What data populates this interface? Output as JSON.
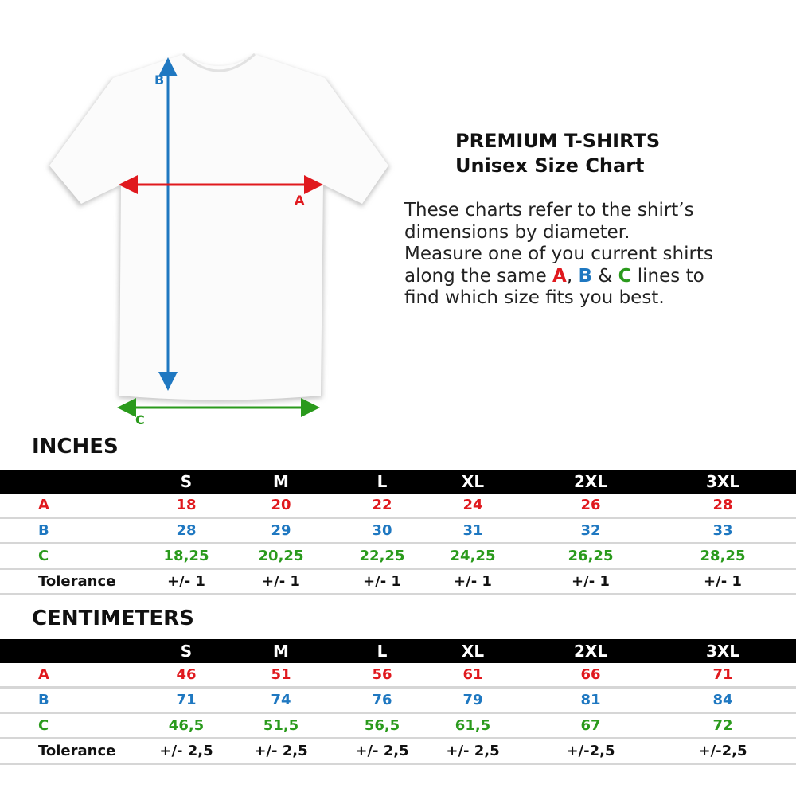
{
  "title": {
    "line1": "PREMIUM T-SHIRTS",
    "line2": "Unisex Size Chart"
  },
  "description": {
    "line1": "These charts refer to the shirt’s",
    "line2": "dimensions by diameter.",
    "line3": "Measure one of you current shirts",
    "line4_pre": "along the same ",
    "a": "A",
    "sep1": ", ",
    "b": "B",
    "sep2": " & ",
    "c": "C",
    "line4_post": " lines to",
    "line5": "find which size fits you best."
  },
  "diagram": {
    "a_label": "A",
    "b_label": "B",
    "c_label": "C"
  },
  "colors": {
    "A": "#e0191e",
    "B": "#1f78c1",
    "C": "#2a9a1c",
    "header": "#000000"
  },
  "sizes": [
    "S",
    "M",
    "L",
    "XL",
    "2XL",
    "3XL"
  ],
  "inches": {
    "title": "INCHES",
    "rows": [
      {
        "label": "A",
        "values": [
          "18",
          "20",
          "22",
          "24",
          "26",
          "28"
        ]
      },
      {
        "label": "B",
        "values": [
          "28",
          "29",
          "30",
          "31",
          "32",
          "33"
        ]
      },
      {
        "label": "C",
        "values": [
          "18,25",
          "20,25",
          "22,25",
          "24,25",
          "26,25",
          "28,25"
        ]
      },
      {
        "label": "Tolerance",
        "values": [
          "+/- 1",
          "+/- 1",
          "+/- 1",
          "+/- 1",
          "+/- 1",
          "+/- 1"
        ]
      }
    ]
  },
  "centimeters": {
    "title": "CENTIMETERS",
    "rows": [
      {
        "label": "A",
        "values": [
          "46",
          "51",
          "56",
          "61",
          "66",
          "71"
        ]
      },
      {
        "label": "B",
        "values": [
          "71",
          "74",
          "76",
          "79",
          "81",
          "84"
        ]
      },
      {
        "label": "C",
        "values": [
          "46,5",
          "51,5",
          "56,5",
          "61,5",
          "67",
          "72"
        ]
      },
      {
        "label": "Tolerance",
        "values": [
          "+/- 2,5",
          "+/- 2,5",
          "+/- 2,5",
          "+/- 2,5",
          "+/-2,5",
          "+/-2,5"
        ]
      }
    ]
  }
}
